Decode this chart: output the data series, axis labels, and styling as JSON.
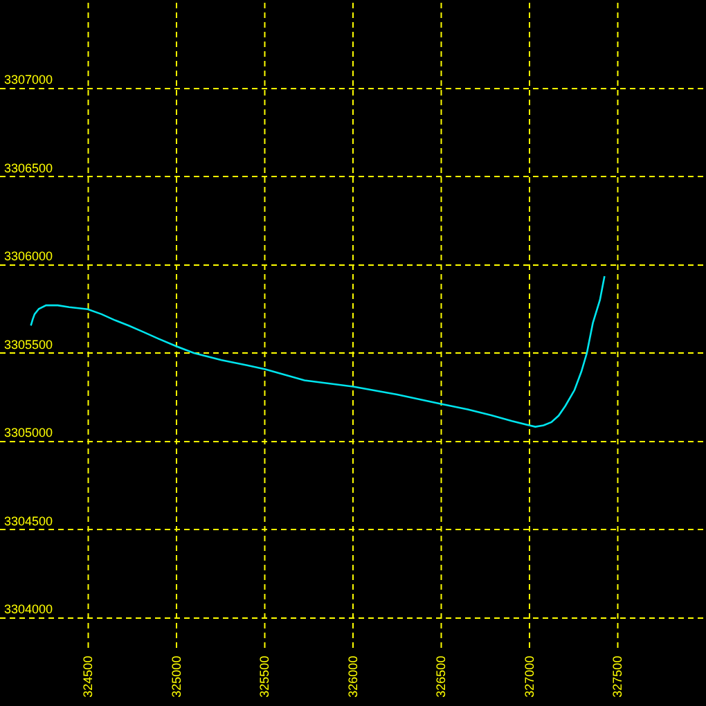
{
  "chart_data": {
    "type": "line",
    "x": [
      324175,
      324185,
      324196,
      324220,
      324261,
      324327,
      324392,
      324497,
      324575,
      324653,
      324730,
      324810,
      324900,
      324994,
      325098,
      325255,
      325400,
      325503,
      325725,
      326000,
      326250,
      326497,
      326650,
      326784,
      326900,
      326999,
      327033,
      327080,
      327124,
      327165,
      327203,
      327255,
      327294,
      327325,
      327359,
      327399,
      327425
    ],
    "values": [
      3305655,
      3305690,
      3305720,
      3305750,
      3305770,
      3305770,
      3305760,
      3305748,
      3305720,
      3305685,
      3305655,
      3305620,
      3305580,
      3305540,
      3305500,
      3305460,
      3305430,
      3305408,
      3305345,
      3305310,
      3305265,
      3305212,
      3305180,
      3305147,
      3305115,
      3305090,
      3305082,
      3305090,
      3305108,
      3305145,
      3305200,
      3305290,
      3305395,
      3305500,
      3305670,
      3305800,
      3305935
    ],
    "color": "#00e5ee",
    "xlim": [
      324000,
      328000
    ],
    "ylim": [
      3303500,
      3307500
    ],
    "xticks": [
      324500,
      325000,
      325500,
      326000,
      326500,
      327000,
      327500
    ],
    "yticks": [
      3304000,
      3304500,
      3305000,
      3305500,
      3306000,
      3306500,
      3307000
    ],
    "grid": true
  }
}
